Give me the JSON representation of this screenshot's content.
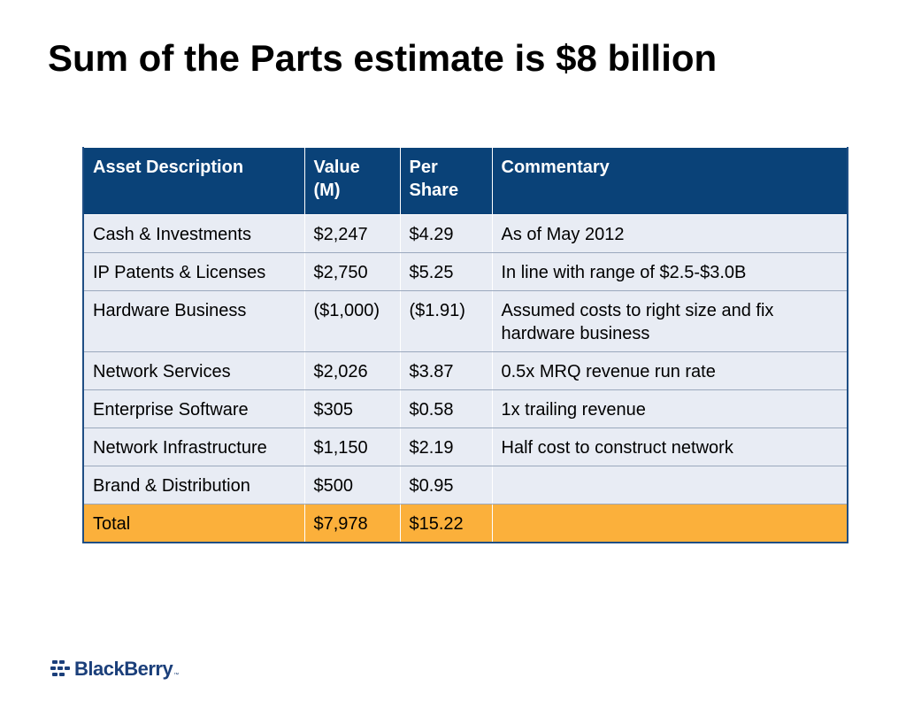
{
  "slide": {
    "title": "Sum of the Parts estimate is $8 billion"
  },
  "table": {
    "headers": {
      "asset": "Asset Description",
      "value": "Value (M)",
      "per_share": "Per Share",
      "commentary": "Commentary"
    },
    "rows": [
      {
        "asset": "Cash & Investments",
        "value": "$2,247",
        "per_share": "$4.29",
        "commentary": "As of May 2012"
      },
      {
        "asset": "IP Patents & Licenses",
        "value": "$2,750",
        "per_share": "$5.25",
        "commentary": "In line with range of $2.5-$3.0B"
      },
      {
        "asset": "Hardware Business",
        "value": "($1,000)",
        "per_share": "($1.91)",
        "commentary": "Assumed costs to right size and fix hardware business"
      },
      {
        "asset": "Network Services",
        "value": "$2,026",
        "per_share": "$3.87",
        "commentary": "0.5x MRQ revenue run rate"
      },
      {
        "asset": "Enterprise Software",
        "value": "$305",
        "per_share": "$0.58",
        "commentary": "1x trailing revenue"
      },
      {
        "asset": "Network Infrastructure",
        "value": "$1,150",
        "per_share": "$2.19",
        "commentary": "Half cost to construct network"
      },
      {
        "asset": "Brand & Distribution",
        "value": "$500",
        "per_share": "$0.95",
        "commentary": ""
      }
    ],
    "total": {
      "asset": "Total",
      "value": "$7,978",
      "per_share": "$15.22",
      "commentary": ""
    }
  },
  "logo": {
    "text": "BlackBerry",
    "trademark": "™",
    "icon": "blackberry-logo-icon",
    "color": "#1b3f7a"
  },
  "colors": {
    "header_bg": "#0a4278",
    "row_bg": "#e8ecf4",
    "total_bg": "#fbb03b"
  }
}
